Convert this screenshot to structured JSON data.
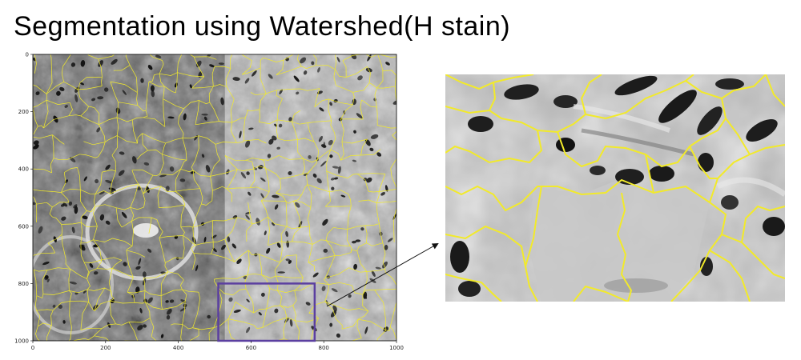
{
  "title": "Segmentation using Watershed(H stain)",
  "main_plot": {
    "xticks": [
      0,
      200,
      400,
      600,
      800,
      1000
    ],
    "yticks": [
      0,
      200,
      400,
      600,
      800,
      1000
    ],
    "xlim": [
      0,
      1000
    ],
    "ylim": [
      1000,
      0
    ],
    "highlight_box": {
      "x0": 510,
      "y0": 800,
      "x1": 775,
      "y1": 1000
    }
  },
  "colors": {
    "boundary": "#f2ea2a",
    "highlight": "#5b3fa0",
    "tissue_light": "#c9c9c9",
    "tissue_dark": "#3a3a3a"
  }
}
